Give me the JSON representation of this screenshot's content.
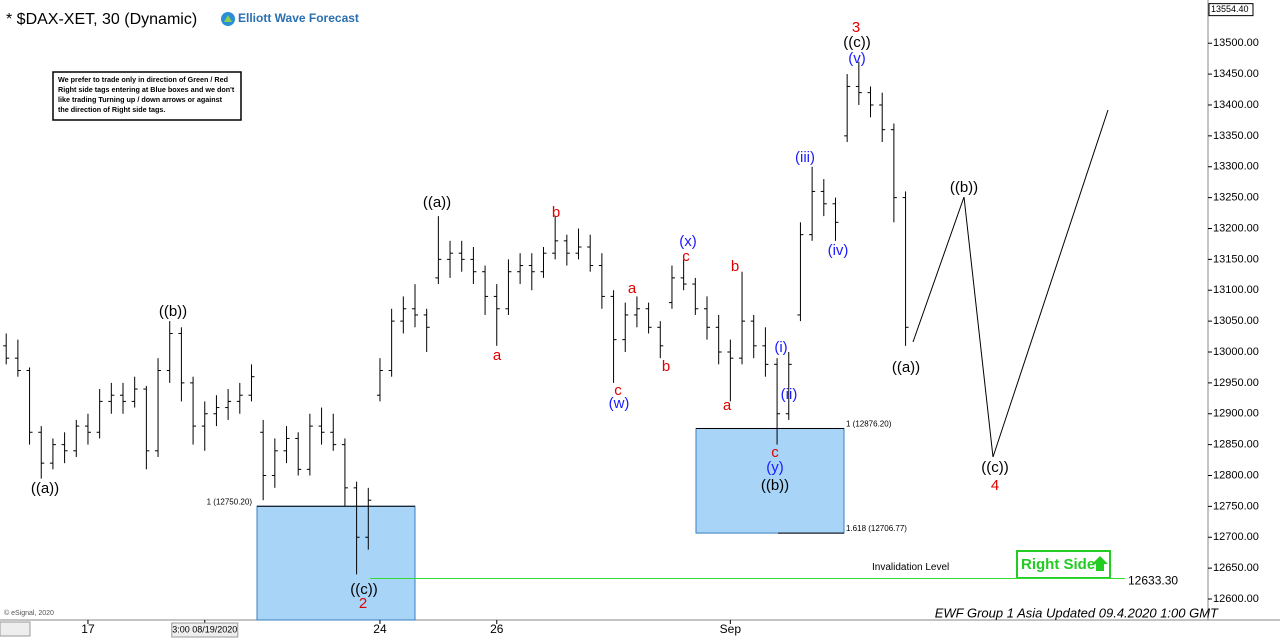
{
  "chart_data": {
    "type": "ohlc",
    "title": "* $DAX-XET, 30 (Dynamic)",
    "logo": "Elliott Wave Forecast",
    "note": [
      "We prefer to trade only in direction of Green / Red",
      "Right side tags entering at Blue boxes and we don't",
      "like trading Turning up / down arrows or against",
      "the direction of Right side tags."
    ],
    "color": "#000000",
    "categories": [
      null,
      null,
      null,
      null,
      null,
      null,
      null,
      "17",
      null,
      null,
      null,
      null,
      null,
      null,
      null,
      null,
      null,
      "3:00 08/19/2020",
      null,
      null,
      null,
      null,
      null,
      null,
      null,
      null,
      null,
      null,
      null,
      null,
      null,
      null,
      "24",
      null,
      null,
      null,
      null,
      null,
      null,
      null,
      null,
      null,
      "26",
      null,
      null,
      null,
      null,
      null,
      null,
      null,
      null,
      null,
      null,
      null,
      null,
      null,
      null,
      null,
      null,
      null,
      null,
      null,
      "Sep",
      null,
      null,
      null,
      null,
      null,
      null,
      null,
      null,
      null,
      null,
      null,
      null,
      null,
      null,
      null
    ],
    "open": [
      13010,
      12990,
      12970,
      12870,
      12820,
      12850,
      12840,
      12880,
      12870,
      12920,
      12930,
      12920,
      12940,
      12840,
      12970,
      13030,
      12950,
      12880,
      12900,
      12910,
      12920,
      12930,
      12870,
      12800,
      12840,
      12860,
      12810,
      12880,
      12870,
      12850,
      12780,
      12700,
      12930,
      12970,
      13050,
      13070,
      13060,
      13120,
      13150,
      13160,
      13150,
      13130,
      13090,
      13070,
      13130,
      13140,
      13130,
      13160,
      13180,
      13160,
      13170,
      13140,
      13090,
      13020,
      13060,
      13070,
      13040,
      13080,
      13120,
      13110,
      13070,
      13040,
      13000,
      12990,
      13050,
      13010,
      12980,
      12900,
      13060,
      13190,
      13260,
      13240,
      13350,
      13430,
      13420,
      13400,
      13360,
      13250
    ],
    "high": [
      13030,
      13020,
      12975,
      12880,
      12860,
      12870,
      12890,
      12900,
      12940,
      12950,
      12950,
      12960,
      12945,
      12990,
      13050,
      13040,
      12960,
      12920,
      12930,
      12940,
      12950,
      12980,
      12890,
      12860,
      12880,
      12870,
      12900,
      12910,
      12900,
      12860,
      12790,
      12780,
      12990,
      13070,
      13090,
      13110,
      13070,
      13220,
      13180,
      13180,
      13170,
      13140,
      13110,
      13150,
      13160,
      13160,
      13170,
      13220,
      13190,
      13200,
      13190,
      13160,
      13100,
      13080,
      13090,
      13080,
      13050,
      13140,
      13150,
      13120,
      13090,
      13060,
      13020,
      13130,
      13060,
      13040,
      12990,
      13000,
      13210,
      13300,
      13280,
      13250,
      13450,
      13470,
      13430,
      13420,
      13370,
      13260
    ],
    "low": [
      12980,
      12960,
      12850,
      12795,
      12810,
      12820,
      12830,
      12850,
      12860,
      12900,
      12900,
      12910,
      12810,
      12830,
      12950,
      12920,
      12850,
      12840,
      12880,
      12890,
      12900,
      12920,
      12760,
      12780,
      12820,
      12800,
      12800,
      12850,
      12840,
      12750,
      12640,
      12680,
      12920,
      12960,
      13030,
      13040,
      13000,
      13110,
      13120,
      13130,
      13110,
      13060,
      13010,
      13060,
      13110,
      13100,
      13120,
      13150,
      13140,
      13150,
      13130,
      13070,
      12950,
      13000,
      13040,
      13030,
      12990,
      13070,
      13100,
      13060,
      13020,
      12980,
      12920,
      12980,
      12990,
      12960,
      12850,
      12890,
      13050,
      13180,
      13220,
      13180,
      13340,
      13400,
      13380,
      13340,
      13210,
      13010
    ],
    "close": [
      12990,
      12970,
      12870,
      12820,
      12850,
      12840,
      12880,
      12870,
      12920,
      12930,
      12920,
      12940,
      12840,
      12970,
      13030,
      12950,
      12880,
      12900,
      12910,
      12920,
      12930,
      12960,
      12800,
      12840,
      12860,
      12810,
      12880,
      12870,
      12850,
      12780,
      12700,
      12760,
      12970,
      13050,
      13070,
      13060,
      13040,
      13150,
      13160,
      13150,
      13130,
      13090,
      13070,
      13130,
      13140,
      13130,
      13160,
      13180,
      13160,
      13170,
      13140,
      13090,
      13020,
      13060,
      13070,
      13040,
      13010,
      13120,
      13110,
      13070,
      13040,
      13000,
      12990,
      13050,
      13010,
      12980,
      12900,
      12980,
      13190,
      13260,
      13240,
      13210,
      13430,
      13420,
      13400,
      13360,
      13250,
      13040
    ],
    "ylim": [
      12566,
      13570
    ],
    "yticks": [
      {
        "value": 12600,
        "label": "12600.00"
      },
      {
        "value": 12650,
        "label": "12650.00"
      },
      {
        "value": 12700,
        "label": "12700.00"
      },
      {
        "value": 12750,
        "label": "12750.00"
      },
      {
        "value": 12800,
        "label": "12800.00"
      },
      {
        "value": 12850,
        "label": "12850.00"
      },
      {
        "value": 12900,
        "label": "12900.00"
      },
      {
        "value": 12950,
        "label": "12950.00"
      },
      {
        "value": 13000,
        "label": "13000.00"
      },
      {
        "value": 13050,
        "label": "13050.00"
      },
      {
        "value": 13100,
        "label": "13100.00"
      },
      {
        "value": 13150,
        "label": "13150.00"
      },
      {
        "value": 13200,
        "label": "13200.00"
      },
      {
        "value": 13250,
        "label": "13250.00"
      },
      {
        "value": 13300,
        "label": "13300.00"
      },
      {
        "value": 13350,
        "label": "13350.00"
      },
      {
        "value": 13400,
        "label": "13400.00"
      },
      {
        "value": 13450,
        "label": "13450.00"
      },
      {
        "value": 13500,
        "label": "13500.00"
      }
    ],
    "last_price": {
      "value": 13554.4,
      "label": "13554.40"
    },
    "boxes": [
      {
        "top": {
          "value": 12750.2,
          "label": "1 (12750.20)"
        }
      },
      {
        "top": {
          "value": 12876.2,
          "label": "1 (12876.20)"
        },
        "bottom": {
          "value": 12706.77,
          "label": "1.618 (12706.77)"
        }
      }
    ],
    "invalidation": {
      "label": "Invalidation Level",
      "value": 12633.3,
      "value_label": "12633.30"
    },
    "annotations": [
      {
        "text": "((a))",
        "color": "#000000"
      },
      {
        "text": "((b))",
        "color": "#000000"
      },
      {
        "text": "((c))",
        "color": "#000000"
      },
      {
        "text": "2",
        "color": "#e00000"
      },
      {
        "text": "((a))",
        "color": "#000000"
      },
      {
        "text": "a",
        "color": "#e00000"
      },
      {
        "text": "b",
        "color": "#e00000"
      },
      {
        "text": "c",
        "color": "#e00000"
      },
      {
        "text": "(w)",
        "color": "#1a1aff"
      },
      {
        "text": "a",
        "color": "#e00000"
      },
      {
        "text": "b",
        "color": "#e00000"
      },
      {
        "text": "(x)",
        "color": "#1a1aff"
      },
      {
        "text": "c",
        "color": "#e00000"
      },
      {
        "text": "b",
        "color": "#e00000"
      },
      {
        "text": "a",
        "color": "#e00000"
      },
      {
        "text": "(i)",
        "color": "#1a1aff"
      },
      {
        "text": "(ii)",
        "color": "#1a1aff"
      },
      {
        "text": "c",
        "color": "#e00000"
      },
      {
        "text": "(y)",
        "color": "#1a1aff"
      },
      {
        "text": "((b))",
        "color": "#000000"
      },
      {
        "text": "(iii)",
        "color": "#1a1aff"
      },
      {
        "text": "(iv)",
        "color": "#1a1aff"
      },
      {
        "text": "3",
        "color": "#e00000"
      },
      {
        "text": "((c))",
        "color": "#000000"
      },
      {
        "text": "(v)",
        "color": "#1a1aff"
      },
      {
        "text": "((b))",
        "color": "#000000"
      },
      {
        "text": "((a))",
        "color": "#000000"
      },
      {
        "text": "((c))",
        "color": "#000000"
      },
      {
        "text": "4",
        "color": "#e00000"
      }
    ],
    "right_side": "Right Side",
    "footer": "EWF Group 1 Asia Updated 09.4.2020 1:00 GMT",
    "copyright": "© eSignal, 2020"
  }
}
